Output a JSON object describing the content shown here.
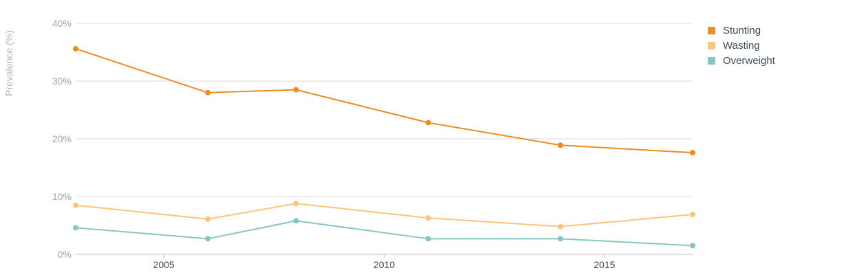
{
  "chart_data": {
    "type": "line",
    "ylabel": "Prevalence (%)",
    "y_ticks": [
      "0%",
      "10%",
      "20%",
      "30%",
      "40%"
    ],
    "ylim": [
      0,
      40
    ],
    "x_ticks": [
      "2005",
      "2010",
      "2015"
    ],
    "xlim": [
      2003,
      2017
    ],
    "grid": true,
    "legend_position": "right",
    "series": [
      {
        "name": "Stunting",
        "color": "#f28a22",
        "points": [
          [
            2003,
            35.6
          ],
          [
            2006,
            28.0
          ],
          [
            2008,
            28.5
          ],
          [
            2011,
            22.8
          ],
          [
            2014,
            18.9
          ],
          [
            2017,
            17.6
          ]
        ]
      },
      {
        "name": "Wasting",
        "color": "#fdc47b",
        "points": [
          [
            2003,
            8.5
          ],
          [
            2006,
            6.1
          ],
          [
            2008,
            8.8
          ],
          [
            2011,
            6.3
          ],
          [
            2014,
            4.8
          ],
          [
            2017,
            6.9
          ]
        ]
      },
      {
        "name": "Overweight",
        "color": "#86c6c2",
        "points": [
          [
            2003,
            4.6
          ],
          [
            2006,
            2.7
          ],
          [
            2008,
            5.8
          ],
          [
            2011,
            2.7
          ],
          [
            2014,
            2.7
          ],
          [
            2017,
            1.5
          ]
        ]
      }
    ]
  }
}
